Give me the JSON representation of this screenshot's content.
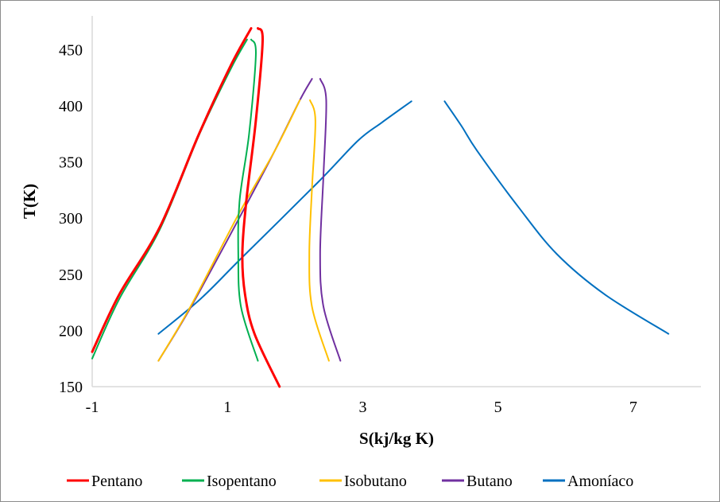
{
  "chart_data": {
    "type": "line",
    "title": "",
    "xlabel": "S(kj/kg K)",
    "ylabel": "T(K)",
    "xlim": [
      -1,
      8
    ],
    "ylim": [
      150,
      480
    ],
    "xticks": [
      -1,
      1,
      3,
      5,
      7
    ],
    "yticks": [
      150,
      200,
      250,
      300,
      350,
      400,
      450
    ],
    "grid": false,
    "legend": "bottom",
    "series": [
      {
        "name": "Pentano",
        "color": "#ff0000",
        "liquid": [
          [
            -1,
            181
          ],
          [
            -0.6,
            232
          ],
          [
            0,
            292
          ],
          [
            0.58,
            375
          ],
          [
            1.05,
            436
          ],
          [
            1.35,
            469
          ]
        ],
        "vapor": [
          [
            1.45,
            469
          ],
          [
            1.52,
            458
          ],
          [
            1.42,
            387
          ],
          [
            1.28,
            316
          ],
          [
            1.22,
            268
          ],
          [
            1.26,
            232
          ],
          [
            1.4,
            197
          ],
          [
            1.77,
            150
          ]
        ]
      },
      {
        "name": "Isopentano",
        "color": "#00b050",
        "liquid": [
          [
            -1,
            175
          ],
          [
            -0.6,
            228
          ],
          [
            0,
            290
          ],
          [
            0.58,
            374
          ],
          [
            1.05,
            433
          ],
          [
            1.29,
            459
          ]
        ],
        "vapor": [
          [
            1.35,
            459
          ],
          [
            1.42,
            446
          ],
          [
            1.32,
            375
          ],
          [
            1.18,
            316
          ],
          [
            1.16,
            268
          ],
          [
            1.2,
            221
          ],
          [
            1.45,
            173
          ]
        ]
      },
      {
        "name": "Isobutano",
        "color": "#ffc000",
        "liquid": [
          [
            -0.02,
            173
          ],
          [
            0.46,
            222
          ],
          [
            1.16,
            303
          ],
          [
            1.7,
            360
          ],
          [
            2.07,
            405
          ]
        ],
        "vapor": [
          [
            2.22,
            405
          ],
          [
            2.3,
            387
          ],
          [
            2.25,
            327
          ],
          [
            2.21,
            268
          ],
          [
            2.25,
            221
          ],
          [
            2.5,
            173
          ]
        ]
      },
      {
        "name": "Butano",
        "color": "#7030a0",
        "liquid": [
          [
            -0.02,
            173
          ],
          [
            0.46,
            221
          ],
          [
            1.2,
            303
          ],
          [
            1.7,
            360
          ],
          [
            2.07,
            405
          ],
          [
            2.25,
            424
          ]
        ],
        "vapor": [
          [
            2.37,
            424
          ],
          [
            2.46,
            405
          ],
          [
            2.42,
            339
          ],
          [
            2.37,
            268
          ],
          [
            2.42,
            221
          ],
          [
            2.67,
            173
          ]
        ]
      },
      {
        "name": "Amoníaco",
        "color": "#0070c0",
        "liquid": [
          [
            -0.02,
            197
          ],
          [
            0.6,
            228
          ],
          [
            1.2,
            264
          ],
          [
            2.34,
            332
          ],
          [
            2.93,
            369
          ],
          [
            3.28,
            385
          ],
          [
            3.72,
            404
          ]
        ],
        "vapor": [
          [
            4.21,
            404
          ],
          [
            4.46,
            382
          ],
          [
            4.69,
            360
          ],
          [
            5.3,
            310
          ],
          [
            5.87,
            268
          ],
          [
            6.58,
            232
          ],
          [
            7.52,
            197
          ]
        ]
      }
    ]
  }
}
